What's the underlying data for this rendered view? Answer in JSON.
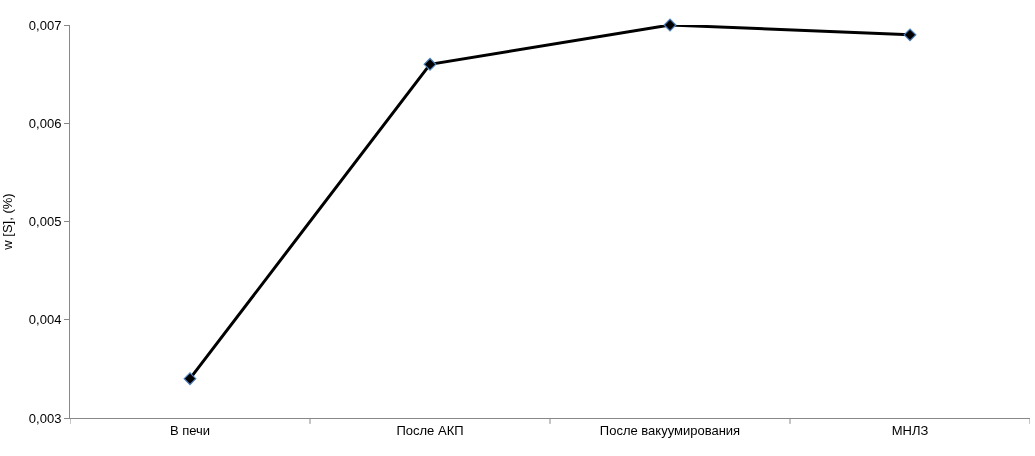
{
  "chart_data": {
    "type": "line",
    "ylabel": "w [S], (%)",
    "categories": [
      "В печи",
      "После АКП",
      "После вакуумирования",
      "МНЛЗ"
    ],
    "series": [
      {
        "color": "#000000",
        "values": [
          0.0034,
          0.0066,
          0.007,
          0.0069
        ]
      }
    ],
    "ylim": [
      0.003,
      0.007
    ],
    "yticks": [
      {
        "value": 0.003,
        "label": "0,003"
      },
      {
        "value": 0.004,
        "label": "0,004"
      },
      {
        "value": 0.005,
        "label": "0,005"
      },
      {
        "value": 0.006,
        "label": "0,006"
      },
      {
        "value": 0.007,
        "label": "0,007"
      }
    ],
    "marker": "diamond",
    "line_style": "solid"
  }
}
